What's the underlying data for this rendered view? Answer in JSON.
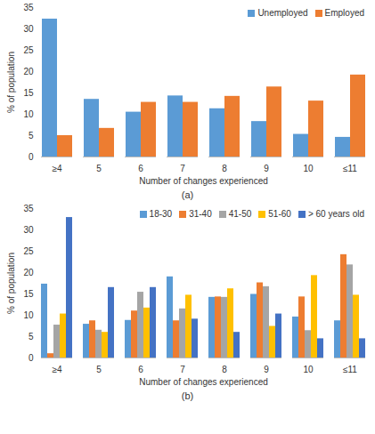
{
  "chart_data": [
    {
      "type": "bar",
      "caption": "(a)",
      "xlabel": "Number of changes experienced",
      "ylabel": "% of population",
      "categories": [
        "≥4",
        "5",
        "6",
        "7",
        "8",
        "9",
        "10",
        "≤11"
      ],
      "series": [
        {
          "name": "Unemployed",
          "color": "#5B9BD5",
          "values": [
            32.3,
            13.5,
            10.5,
            14.3,
            11.3,
            8.3,
            5.3,
            4.6
          ]
        },
        {
          "name": "Employed",
          "color": "#ED7D31",
          "values": [
            5,
            6.7,
            12.8,
            12.8,
            14.2,
            16.4,
            13.1,
            19.2
          ]
        }
      ],
      "ylim": [
        0,
        35
      ],
      "yticks": [
        0,
        5,
        10,
        15,
        20,
        25,
        30,
        35
      ],
      "grid": false,
      "legend": "top-right"
    },
    {
      "type": "bar",
      "caption": "(b)",
      "xlabel": "Number of changes experienced",
      "ylabel": "% of population",
      "categories": [
        "≥4",
        "5",
        "6",
        "7",
        "8",
        "9",
        "10",
        "≤11"
      ],
      "series": [
        {
          "name": "18-30",
          "color": "#5B9BD5",
          "values": [
            17.3,
            7.9,
            8.8,
            19,
            14.2,
            14.9,
            9.6,
            8.7
          ]
        },
        {
          "name": "31-40",
          "color": "#ED7D31",
          "values": [
            1,
            8.7,
            11,
            8.7,
            14.3,
            17.6,
            14.3,
            24.2
          ]
        },
        {
          "name": "41-50",
          "color": "#A5A5A5",
          "values": [
            7.7,
            6.5,
            15.4,
            11.5,
            14.2,
            16.7,
            6.4,
            21.8
          ]
        },
        {
          "name": "51-60",
          "color": "#FFC000",
          "values": [
            10.3,
            6,
            11.7,
            14.7,
            16.2,
            7.4,
            19.3,
            14.7
          ]
        },
        {
          "name": "> 60 years old",
          "color": "#4472C4",
          "values": [
            32.9,
            16.5,
            16.5,
            9.1,
            6,
            10.3,
            4.5,
            4.5
          ]
        }
      ],
      "ylim": [
        0,
        35
      ],
      "yticks": [
        0,
        5,
        10,
        15,
        20,
        25,
        30,
        35
      ],
      "grid": false,
      "legend": "top-right"
    }
  ]
}
